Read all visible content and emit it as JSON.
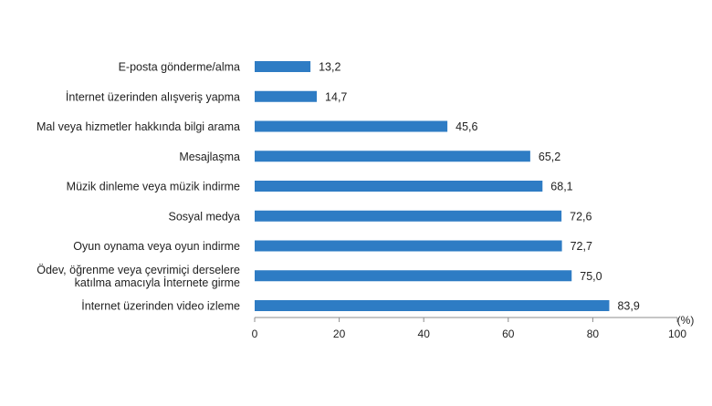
{
  "chart_data": {
    "type": "bar",
    "orientation": "horizontal",
    "categories": [
      [
        "E-posta gönderme/alma"
      ],
      [
        "İnternet üzerinden alışveriş yapma"
      ],
      [
        "Mal veya hizmetler hakkında bilgi arama"
      ],
      [
        "Mesajlaşma"
      ],
      [
        "Müzik dinleme veya müzik indirme"
      ],
      [
        "Sosyal medya"
      ],
      [
        "Oyun oynama veya oyun indirme"
      ],
      [
        "Ödev, öğrenme veya çevrimiçi derselere",
        "katılma amacıyla İnternete girme"
      ],
      [
        "İnternet üzerinden video izleme"
      ]
    ],
    "values": [
      13.2,
      14.7,
      45.6,
      65.2,
      68.1,
      72.6,
      72.7,
      75.0,
      83.9
    ],
    "value_labels": [
      "13,2",
      "14,7",
      "45,6",
      "65,2",
      "68,1",
      "72,6",
      "72,7",
      "75,0",
      "83,9"
    ],
    "xlim": [
      0,
      100
    ],
    "xticks": [
      0,
      20,
      40,
      60,
      80,
      100
    ],
    "x_unit_label": "(%)",
    "bar_color": "#2e7cc4",
    "axis_color": "#8c8c8c",
    "grid": false,
    "legend": false
  }
}
